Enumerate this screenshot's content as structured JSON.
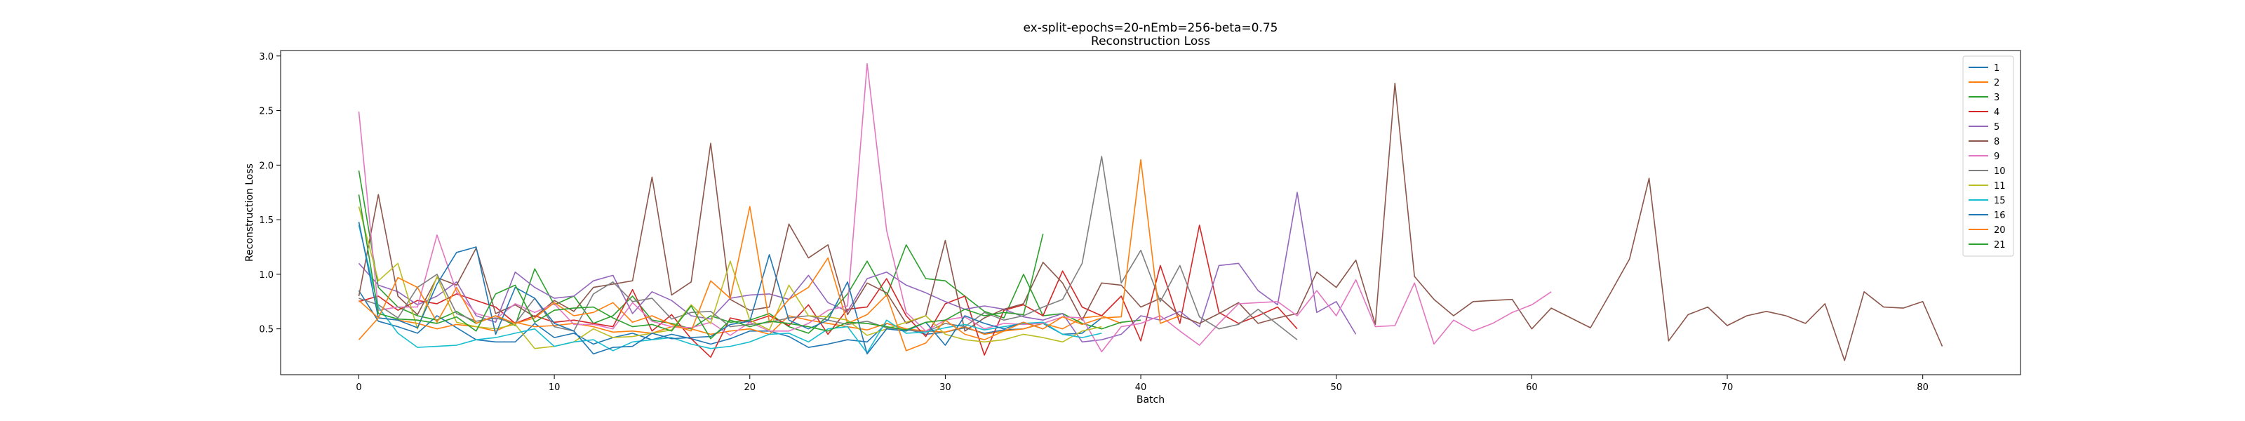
{
  "chart_data": {
    "type": "line",
    "title": "ex-split-epochs=20-nEmb=256-beta=0.75",
    "subtitle": "Reconstruction Loss",
    "xlabel": "Batch",
    "ylabel": "Reconstruction Loss",
    "xlim": [
      -4,
      85
    ],
    "ylim": [
      0.08,
      3.05
    ],
    "xticks": [
      0,
      10,
      20,
      30,
      40,
      50,
      60,
      70,
      80
    ],
    "yticks": [
      0.5,
      1.0,
      1.5,
      2.0,
      2.5,
      3.0
    ],
    "ytick_labels": [
      "0.5",
      "1.0",
      "1.5",
      "2.0",
      "2.5",
      "3.0"
    ],
    "grid": false,
    "legend_position": "top-right",
    "series": [
      {
        "name": "1",
        "color": "#1f77b4",
        "values": [
          0.85,
          0.57,
          0.52,
          0.46,
          0.62,
          0.51,
          0.4,
          0.38,
          0.38,
          0.55,
          0.42,
          0.46,
          0.36,
          0.42,
          0.46,
          0.4,
          0.45,
          0.41,
          0.36,
          0.41,
          0.48,
          0.48,
          0.43,
          0.33,
          0.36,
          0.4,
          0.38,
          0.55,
          0.5,
          0.45,
          0.47,
          0.51,
          0.46,
          0.49,
          0.5,
          0.55,
          0.45,
          0.46,
          0.6
        ]
      },
      {
        "name": "2",
        "color": "#ff7f0e",
        "values": [
          0.4,
          0.6,
          0.58,
          0.55,
          0.5,
          0.54,
          0.52,
          0.48,
          0.56,
          0.52,
          0.53,
          0.55,
          0.52,
          0.47,
          0.48,
          0.46,
          0.52,
          0.5,
          0.45,
          0.48,
          0.5,
          0.45,
          0.62,
          0.58,
          0.55,
          0.52,
          0.49,
          0.55,
          0.5,
          0.48,
          0.47,
          0.52,
          0.45,
          0.48,
          0.5,
          0.55,
          0.5,
          0.6,
          0.62,
          0.55
        ]
      },
      {
        "name": "3",
        "color": "#2ca02c",
        "values": [
          1.95,
          0.88,
          0.7,
          0.62,
          0.58,
          0.66,
          0.55,
          0.62,
          0.53,
          1.05,
          0.72,
          0.8,
          0.55,
          0.62,
          0.8,
          0.58,
          0.55,
          0.5,
          0.62,
          0.56,
          0.58,
          0.64,
          0.52,
          0.46,
          0.62,
          0.82,
          1.12,
          0.8,
          1.27,
          0.96,
          0.94,
          0.8,
          0.66,
          0.6,
          1.0,
          0.62,
          0.64,
          0.55,
          0.5,
          0.56,
          0.58
        ]
      },
      {
        "name": "4",
        "color": "#d62728",
        "values": [
          0.75,
          0.8,
          0.67,
          0.76,
          0.73,
          0.82,
          0.76,
          0.7,
          0.55,
          0.62,
          0.56,
          0.58,
          0.55,
          0.52,
          0.86,
          0.48,
          0.63,
          0.41,
          0.24,
          0.6,
          0.56,
          0.62,
          0.53,
          0.72,
          0.45,
          0.68,
          0.7,
          0.96,
          0.62,
          0.43,
          0.73,
          0.8,
          0.26,
          0.67,
          0.72,
          0.62,
          1.03,
          0.7,
          0.62,
          0.8,
          0.39,
          1.08,
          0.55,
          1.45,
          0.65,
          0.55,
          0.62,
          0.7,
          0.5
        ]
      },
      {
        "name": "5",
        "color": "#9467bd",
        "values": [
          1.1,
          0.9,
          0.84,
          0.72,
          0.8,
          0.93,
          0.62,
          0.56,
          1.02,
          0.88,
          0.78,
          0.8,
          0.94,
          0.99,
          0.64,
          0.84,
          0.76,
          0.62,
          0.59,
          0.78,
          0.81,
          0.82,
          0.77,
          0.99,
          0.74,
          0.66,
          0.96,
          1.02,
          0.9,
          0.83,
          0.75,
          0.68,
          0.71,
          0.68,
          0.61,
          0.58,
          0.64,
          0.38,
          0.4,
          0.45,
          0.62,
          0.58,
          0.66,
          0.52,
          1.08,
          1.1,
          0.85,
          0.72,
          1.75,
          0.65,
          0.75,
          0.45
        ]
      },
      {
        "name": "8",
        "color": "#8c564b",
        "values": [
          0.8,
          1.73,
          0.8,
          0.63,
          0.97,
          0.9,
          1.24,
          0.64,
          0.72,
          0.61,
          0.76,
          0.66,
          0.88,
          0.91,
          0.94,
          1.89,
          0.81,
          0.93,
          2.2,
          0.77,
          0.67,
          0.7,
          1.46,
          1.15,
          1.27,
          0.63,
          0.92,
          0.83,
          0.55,
          0.62,
          1.31,
          0.48,
          0.6,
          0.68,
          0.73,
          1.11,
          0.92,
          0.58,
          0.92,
          0.9,
          0.7,
          0.78,
          0.62,
          0.55,
          0.64,
          0.74,
          0.55,
          0.6,
          0.64,
          1.02,
          0.88,
          1.13,
          0.54,
          2.75,
          0.98,
          0.77,
          0.62,
          0.75,
          0.76,
          0.77,
          0.5,
          0.69,
          0.6,
          0.51,
          0.82,
          1.14,
          1.88,
          0.39,
          0.63,
          0.7,
          0.53,
          0.62,
          0.66,
          0.62,
          0.55,
          0.73,
          0.21,
          0.84,
          0.7,
          0.69,
          0.75,
          0.34
        ]
      },
      {
        "name": "9",
        "color": "#e377c2",
        "values": [
          2.49,
          0.67,
          0.7,
          0.7,
          1.36,
          0.84,
          0.64,
          0.59,
          0.73,
          0.65,
          0.73,
          0.54,
          0.54,
          0.5,
          0.74,
          0.57,
          0.52,
          0.51,
          0.56,
          0.44,
          0.56,
          0.48,
          0.48,
          0.55,
          0.67,
          0.71,
          2.93,
          1.4,
          0.65,
          0.48,
          0.58,
          0.61,
          0.5,
          0.55,
          0.54,
          0.55,
          0.61,
          0.6,
          0.29,
          0.52,
          0.55,
          0.62,
          0.48,
          0.35,
          0.55,
          0.73,
          0.74,
          0.75,
          0.62,
          0.85,
          0.62,
          0.95,
          0.52,
          0.53,
          0.92,
          0.36,
          0.58,
          0.48,
          0.55,
          0.65,
          0.72,
          0.84
        ]
      },
      {
        "name": "10",
        "color": "#7f7f7f",
        "values": [
          0.78,
          0.72,
          0.6,
          0.88,
          1.0,
          0.64,
          0.57,
          0.6,
          0.55,
          0.78,
          0.52,
          0.48,
          0.82,
          0.93,
          0.75,
          0.78,
          0.59,
          0.65,
          0.66,
          0.52,
          0.54,
          0.56,
          0.6,
          0.62,
          0.58,
          0.54,
          0.57,
          0.51,
          0.49,
          0.47,
          0.55,
          0.52,
          0.65,
          0.58,
          0.62,
          0.7,
          0.77,
          1.1,
          2.08,
          0.92,
          1.22,
          0.75,
          1.08,
          0.61,
          0.5,
          0.54,
          0.68,
          0.54,
          0.4
        ]
      },
      {
        "name": "11",
        "color": "#bcbd22",
        "values": [
          1.62,
          0.94,
          1.1,
          0.5,
          0.98,
          0.56,
          0.52,
          0.5,
          0.54,
          0.32,
          0.34,
          0.38,
          0.5,
          0.42,
          0.43,
          0.46,
          0.49,
          0.72,
          0.55,
          1.12,
          0.58,
          0.49,
          0.9,
          0.62,
          0.61,
          0.58,
          0.44,
          0.5,
          0.56,
          0.62,
          0.45,
          0.4,
          0.38,
          0.4,
          0.45,
          0.42,
          0.38,
          0.48,
          0.52
        ]
      },
      {
        "name": "15",
        "color": "#17becf",
        "values": [
          1.45,
          0.7,
          0.46,
          0.33,
          0.34,
          0.35,
          0.4,
          0.42,
          0.46,
          0.5,
          0.34,
          0.38,
          0.4,
          0.3,
          0.38,
          0.4,
          0.42,
          0.36,
          0.32,
          0.34,
          0.38,
          0.45,
          0.46,
          0.38,
          0.5,
          0.52,
          0.28,
          0.58,
          0.46,
          0.47,
          0.51,
          0.54,
          0.49,
          0.52,
          0.55,
          0.56,
          0.45,
          0.42,
          0.46
        ]
      },
      {
        "name": "16",
        "color": "#1f77b4",
        "values": [
          1.48,
          0.6,
          0.58,
          0.51,
          0.91,
          1.2,
          1.25,
          0.45,
          0.88,
          0.78,
          0.55,
          0.48,
          0.27,
          0.33,
          0.34,
          0.46,
          0.41,
          0.42,
          0.43,
          0.54,
          0.57,
          1.18,
          0.58,
          0.5,
          0.58,
          0.93,
          0.27,
          0.5,
          0.48,
          0.56,
          0.35,
          0.62,
          0.55,
          0.5,
          0.56,
          0.5
        ]
      },
      {
        "name": "20",
        "color": "#ff7f0e",
        "values": [
          0.76,
          0.6,
          0.97,
          0.88,
          0.56,
          0.88,
          0.55,
          0.62,
          0.55,
          0.6,
          0.74,
          0.62,
          0.65,
          0.74,
          0.56,
          0.62,
          0.54,
          0.48,
          0.94,
          0.78,
          1.62,
          0.56,
          0.77,
          0.88,
          1.15,
          0.55,
          0.63,
          0.81,
          0.3,
          0.37,
          0.58,
          0.45,
          0.4,
          0.48,
          0.56,
          0.5,
          0.61,
          0.54,
          0.6,
          0.61,
          2.05,
          0.55,
          0.62
        ]
      },
      {
        "name": "21",
        "color": "#2ca02c",
        "values": [
          1.73,
          0.64,
          0.59,
          0.58,
          0.55,
          0.61,
          0.48,
          0.82,
          0.9,
          0.56,
          0.67,
          0.69,
          0.7,
          0.6,
          0.52,
          0.54,
          0.48,
          0.71,
          0.41,
          0.58,
          0.52,
          0.57,
          0.55,
          0.52,
          0.48,
          0.56,
          0.55,
          0.52,
          0.49,
          0.56,
          0.58,
          0.68,
          0.62,
          0.65,
          0.63,
          1.37
        ]
      }
    ]
  }
}
